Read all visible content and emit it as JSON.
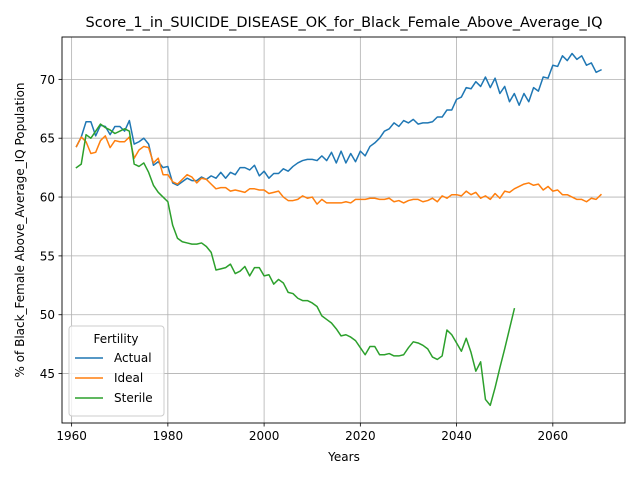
{
  "chart_data": {
    "type": "line",
    "title": "Score_1_in_SUICIDE_DISEASE_OK_for_Black_Female_Above_Average_IQ",
    "xlabel": "Years",
    "ylabel": "% of Black_Female Above_Average_IQ Population",
    "xlim": [
      1958,
      2075
    ],
    "ylim": [
      40.8,
      73.6
    ],
    "x_ticks": [
      1960,
      1980,
      2000,
      2020,
      2040,
      2060
    ],
    "y_ticks": [
      45,
      50,
      55,
      60,
      65,
      70
    ],
    "grid": true,
    "legend": {
      "title": "Fertility",
      "position": "lower-left"
    },
    "series": [
      {
        "name": "Actual",
        "color": "#1f77b4",
        "x": [
          1961,
          1962,
          1963,
          1964,
          1965,
          1966,
          1967,
          1968,
          1969,
          1970,
          1971,
          1972,
          1973,
          1974,
          1975,
          1976,
          1977,
          1978,
          1979,
          1980,
          1981,
          1982,
          1983,
          1984,
          1985,
          1986,
          1987,
          1988,
          1989,
          1990,
          1991,
          1992,
          1993,
          1994,
          1995,
          1996,
          1997,
          1998,
          1999,
          2000,
          2001,
          2002,
          2003,
          2004,
          2005,
          2006,
          2007,
          2008,
          2009,
          2010,
          2011,
          2012,
          2013,
          2014,
          2015,
          2016,
          2017,
          2018,
          2019,
          2020,
          2021,
          2022,
          2023,
          2024,
          2025,
          2026,
          2027,
          2028,
          2029,
          2030,
          2031,
          2032,
          2033,
          2034,
          2035,
          2036,
          2037,
          2038,
          2039,
          2040,
          2041,
          2042,
          2043,
          2044,
          2045,
          2046,
          2047,
          2048,
          2049,
          2050,
          2051,
          2052,
          2053,
          2054,
          2055,
          2056,
          2057,
          2058,
          2059,
          2060,
          2061,
          2062,
          2063,
          2064,
          2065,
          2066,
          2067,
          2068,
          2069,
          2070
        ],
        "y": [
          64.3,
          65.1,
          66.4,
          66.4,
          65.2,
          66.1,
          66.0,
          65.3,
          66.0,
          66.0,
          65.6,
          66.5,
          64.5,
          64.7,
          65.0,
          64.5,
          62.7,
          63.0,
          62.5,
          62.6,
          61.2,
          61.0,
          61.3,
          61.6,
          61.4,
          61.4,
          61.7,
          61.5,
          61.8,
          61.6,
          62.1,
          61.6,
          62.1,
          61.9,
          62.5,
          62.5,
          62.3,
          62.7,
          61.8,
          62.2,
          61.6,
          62.0,
          62.0,
          62.4,
          62.2,
          62.6,
          62.9,
          63.1,
          63.2,
          63.2,
          63.1,
          63.5,
          63.1,
          63.8,
          62.9,
          63.9,
          62.9,
          63.7,
          63.0,
          63.9,
          63.5,
          64.3,
          64.6,
          65.0,
          65.6,
          65.8,
          66.3,
          66.0,
          66.5,
          66.3,
          66.6,
          66.2,
          66.3,
          66.3,
          66.4,
          66.8,
          66.8,
          67.4,
          67.4,
          68.3,
          68.5,
          69.3,
          69.2,
          69.8,
          69.4,
          70.2,
          69.3,
          70.1,
          68.8,
          69.4,
          68.1,
          68.8,
          67.8,
          68.8,
          68.1,
          69.3,
          69.0,
          70.2,
          70.1,
          71.2,
          71.1,
          72.0,
          71.6,
          72.2,
          71.7,
          72.0,
          71.2,
          71.4,
          70.6,
          70.8
        ]
      },
      {
        "name": "Ideal",
        "color": "#ff7f0e",
        "x": [
          1961,
          1962,
          1963,
          1964,
          1965,
          1966,
          1967,
          1968,
          1969,
          1970,
          1971,
          1972,
          1973,
          1974,
          1975,
          1976,
          1977,
          1978,
          1979,
          1980,
          1981,
          1982,
          1983,
          1984,
          1985,
          1986,
          1987,
          1988,
          1989,
          1990,
          1991,
          1992,
          1993,
          1994,
          1995,
          1996,
          1997,
          1998,
          1999,
          2000,
          2001,
          2002,
          2003,
          2004,
          2005,
          2006,
          2007,
          2008,
          2009,
          2010,
          2011,
          2012,
          2013,
          2014,
          2015,
          2016,
          2017,
          2018,
          2019,
          2020,
          2021,
          2022,
          2023,
          2024,
          2025,
          2026,
          2027,
          2028,
          2029,
          2030,
          2031,
          2032,
          2033,
          2034,
          2035,
          2036,
          2037,
          2038,
          2039,
          2040,
          2041,
          2042,
          2043,
          2044,
          2045,
          2046,
          2047,
          2048,
          2049,
          2050,
          2051,
          2052,
          2053,
          2054,
          2055,
          2056,
          2057,
          2058,
          2059,
          2060,
          2061,
          2062,
          2063,
          2064,
          2065,
          2066,
          2067,
          2068,
          2069,
          2070
        ],
        "y": [
          64.3,
          65.1,
          64.7,
          63.7,
          63.8,
          64.8,
          65.2,
          64.2,
          64.8,
          64.7,
          64.7,
          65.1,
          63.3,
          64.0,
          64.3,
          64.2,
          62.9,
          63.3,
          61.9,
          61.9,
          61.3,
          61.1,
          61.5,
          61.9,
          61.7,
          61.2,
          61.6,
          61.5,
          61.1,
          60.7,
          60.8,
          60.8,
          60.5,
          60.6,
          60.5,
          60.4,
          60.7,
          60.7,
          60.6,
          60.6,
          60.3,
          60.4,
          60.5,
          60.0,
          59.7,
          59.7,
          59.8,
          60.1,
          59.9,
          60.0,
          59.4,
          59.8,
          59.5,
          59.5,
          59.5,
          59.5,
          59.6,
          59.5,
          59.8,
          59.8,
          59.8,
          59.9,
          59.9,
          59.8,
          59.8,
          59.9,
          59.6,
          59.7,
          59.5,
          59.7,
          59.8,
          59.8,
          59.6,
          59.7,
          59.9,
          59.6,
          60.1,
          59.9,
          60.2,
          60.2,
          60.1,
          60.5,
          60.2,
          60.4,
          59.9,
          60.1,
          59.8,
          60.3,
          59.9,
          60.5,
          60.4,
          60.7,
          60.9,
          61.1,
          61.2,
          61.0,
          61.1,
          60.6,
          60.9,
          60.5,
          60.6,
          60.2,
          60.2,
          60.0,
          59.8,
          59.8,
          59.6,
          59.9,
          59.8,
          60.2
        ]
      },
      {
        "name": "Sterile",
        "color": "#2ca02c",
        "x": [
          1961,
          1962,
          1963,
          1964,
          1965,
          1966,
          1967,
          1968,
          1969,
          1970,
          1971,
          1972,
          1973,
          1974,
          1975,
          1976,
          1977,
          1978,
          1979,
          1980,
          1981,
          1982,
          1983,
          1984,
          1985,
          1986,
          1987,
          1988,
          1989,
          1990,
          1991,
          1992,
          1993,
          1994,
          1995,
          1996,
          1997,
          1998,
          1999,
          2000,
          2001,
          2002,
          2003,
          2004,
          2005,
          2006,
          2007,
          2008,
          2009,
          2010,
          2011,
          2012,
          2013,
          2014,
          2015,
          2016,
          2017,
          2018,
          2019,
          2020,
          2021,
          2022,
          2023,
          2024,
          2025,
          2026,
          2027,
          2028,
          2029,
          2030,
          2031,
          2032,
          2033,
          2034,
          2035,
          2036,
          2037,
          2038,
          2039,
          2040,
          2041,
          2042,
          2043,
          2044,
          2045,
          2046,
          2047,
          2048,
          2049,
          2050,
          2051,
          2052
        ],
        "y": [
          62.5,
          62.8,
          65.3,
          65.0,
          65.6,
          66.2,
          65.9,
          65.7,
          65.4,
          65.6,
          65.8,
          65.6,
          62.8,
          62.6,
          62.9,
          62.1,
          61.0,
          60.4,
          60.0,
          59.6,
          57.6,
          56.5,
          56.2,
          56.1,
          56.0,
          56.0,
          56.1,
          55.8,
          55.3,
          53.8,
          53.9,
          54.0,
          54.3,
          53.5,
          53.7,
          54.1,
          53.3,
          54.0,
          54.0,
          53.3,
          53.4,
          52.6,
          53.0,
          52.7,
          51.9,
          51.8,
          51.4,
          51.2,
          51.2,
          51.0,
          50.7,
          49.9,
          49.6,
          49.3,
          48.8,
          48.2,
          48.3,
          48.1,
          47.8,
          47.2,
          46.6,
          47.3,
          47.3,
          46.6,
          46.6,
          46.7,
          46.5,
          46.5,
          46.6,
          47.2,
          47.7,
          47.6,
          47.4,
          47.1,
          46.4,
          46.2,
          46.5,
          48.7,
          48.3,
          47.6,
          46.9,
          48.0,
          46.8,
          45.2,
          46.0,
          42.8,
          42.3,
          43.8,
          45.5,
          47.1,
          48.8,
          50.5
        ]
      }
    ]
  }
}
